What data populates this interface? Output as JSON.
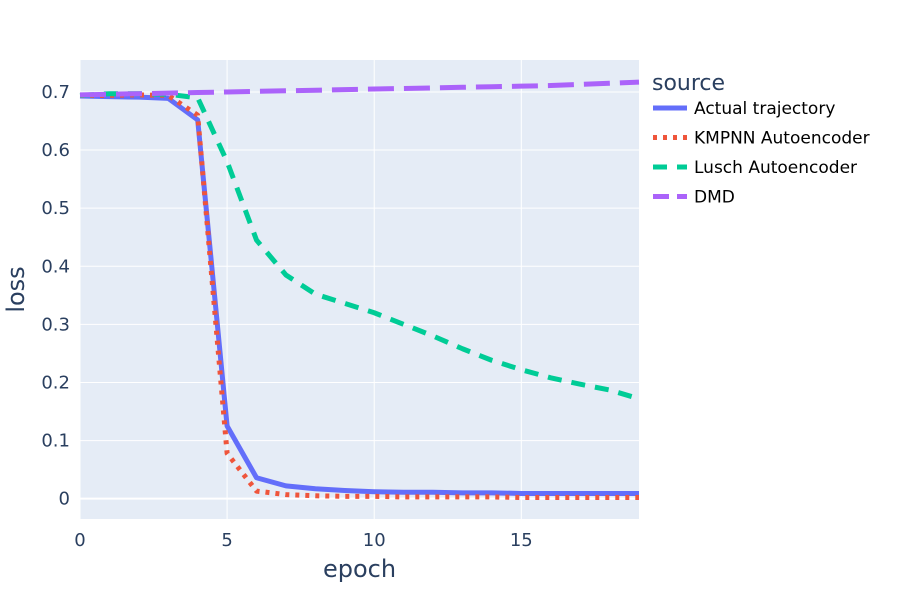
{
  "chart_data": {
    "type": "line",
    "title": "",
    "xlabel": "epoch",
    "ylabel": "loss",
    "xlim": [
      0,
      19
    ],
    "ylim": [
      -0.035,
      0.755
    ],
    "x_ticks": [
      0,
      5,
      10,
      15
    ],
    "y_ticks": [
      0,
      0.1,
      0.2,
      0.3,
      0.4,
      0.5,
      0.6,
      0.7
    ],
    "grid": true,
    "legend_title": "source",
    "legend_position": "right",
    "background_color": "#e5ecf6",
    "grid_color": "#ffffff",
    "text_color": "#2a3f5f",
    "x": [
      0,
      1,
      2,
      3,
      4,
      5,
      6,
      7,
      8,
      9,
      10,
      11,
      12,
      13,
      14,
      15,
      16,
      17,
      18,
      19
    ],
    "series": [
      {
        "name": "Actual trajectory",
        "color": "#636efa",
        "dash": "solid",
        "values": [
          0.693,
          0.692,
          0.691,
          0.689,
          0.652,
          0.125,
          0.036,
          0.022,
          0.017,
          0.014,
          0.012,
          0.011,
          0.011,
          0.01,
          0.01,
          0.009,
          0.009,
          0.009,
          0.009,
          0.009
        ]
      },
      {
        "name": "KMPNN Autoencoder",
        "color": "#ef553b",
        "dash": "dot",
        "values": [
          0.694,
          0.694,
          0.695,
          0.694,
          0.66,
          0.078,
          0.013,
          0.007,
          0.005,
          0.004,
          0.004,
          0.003,
          0.003,
          0.003,
          0.003,
          0.002,
          0.002,
          0.002,
          0.002,
          0.002
        ]
      },
      {
        "name": "Lusch Autoencoder",
        "color": "#00cc96",
        "dash": "dash",
        "values": [
          0.694,
          0.697,
          0.697,
          0.696,
          0.69,
          0.58,
          0.445,
          0.385,
          0.352,
          0.336,
          0.32,
          0.3,
          0.28,
          0.258,
          0.238,
          0.222,
          0.208,
          0.197,
          0.187,
          0.172
        ]
      },
      {
        "name": "DMD",
        "color": "#ab63fa",
        "dash": "longdash",
        "values": [
          0.695,
          0.696,
          0.697,
          0.698,
          0.699,
          0.7,
          0.701,
          0.702,
          0.703,
          0.704,
          0.705,
          0.706,
          0.707,
          0.708,
          0.709,
          0.71,
          0.711,
          0.713,
          0.715,
          0.717
        ]
      }
    ]
  }
}
